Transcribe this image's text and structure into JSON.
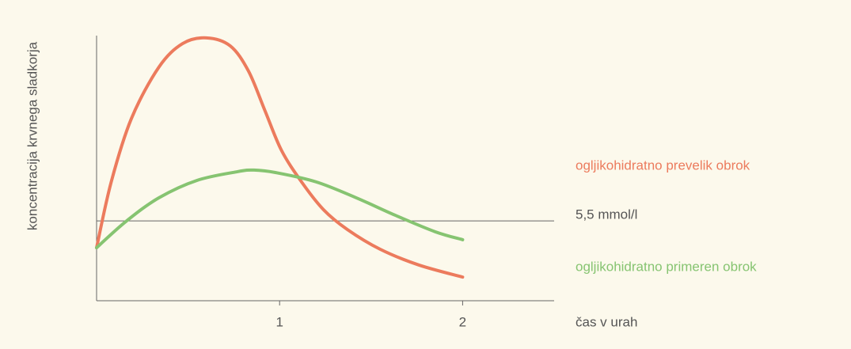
{
  "chart_data": {
    "type": "line",
    "ylabel": "koncentracija krvnega sladkorja",
    "xlabel": "čas v urah",
    "xlim": [
      0,
      2.5
    ],
    "xticks": [
      1,
      2
    ],
    "ylim": [
      3,
      11.3
    ],
    "reference_line": {
      "value": 5.5,
      "label": "5,5 mmol/l"
    },
    "series": [
      {
        "name": "ogljikohidratno prevelik obrok",
        "color": "#ec7b5d",
        "x": [
          0,
          0.08,
          0.19,
          0.34,
          0.47,
          0.6,
          0.73,
          0.83,
          0.92,
          1.01,
          1.12,
          1.24,
          1.37,
          1.55,
          1.76,
          2.0
        ],
        "values": [
          4.66,
          6.72,
          8.7,
          10.31,
          11.05,
          11.23,
          10.98,
          10.19,
          8.95,
          7.71,
          6.72,
          5.85,
          5.23,
          4.61,
          4.12,
          3.74
        ]
      },
      {
        "name": "ogljikohidratno primeren obrok",
        "color": "#86c471",
        "x": [
          0,
          0.16,
          0.34,
          0.55,
          0.77,
          0.86,
          0.98,
          1.2,
          1.42,
          1.63,
          1.85,
          2.0
        ],
        "values": [
          4.66,
          5.48,
          6.22,
          6.77,
          7.04,
          7.09,
          7.01,
          6.72,
          6.22,
          5.68,
          5.16,
          4.91
        ]
      }
    ]
  }
}
